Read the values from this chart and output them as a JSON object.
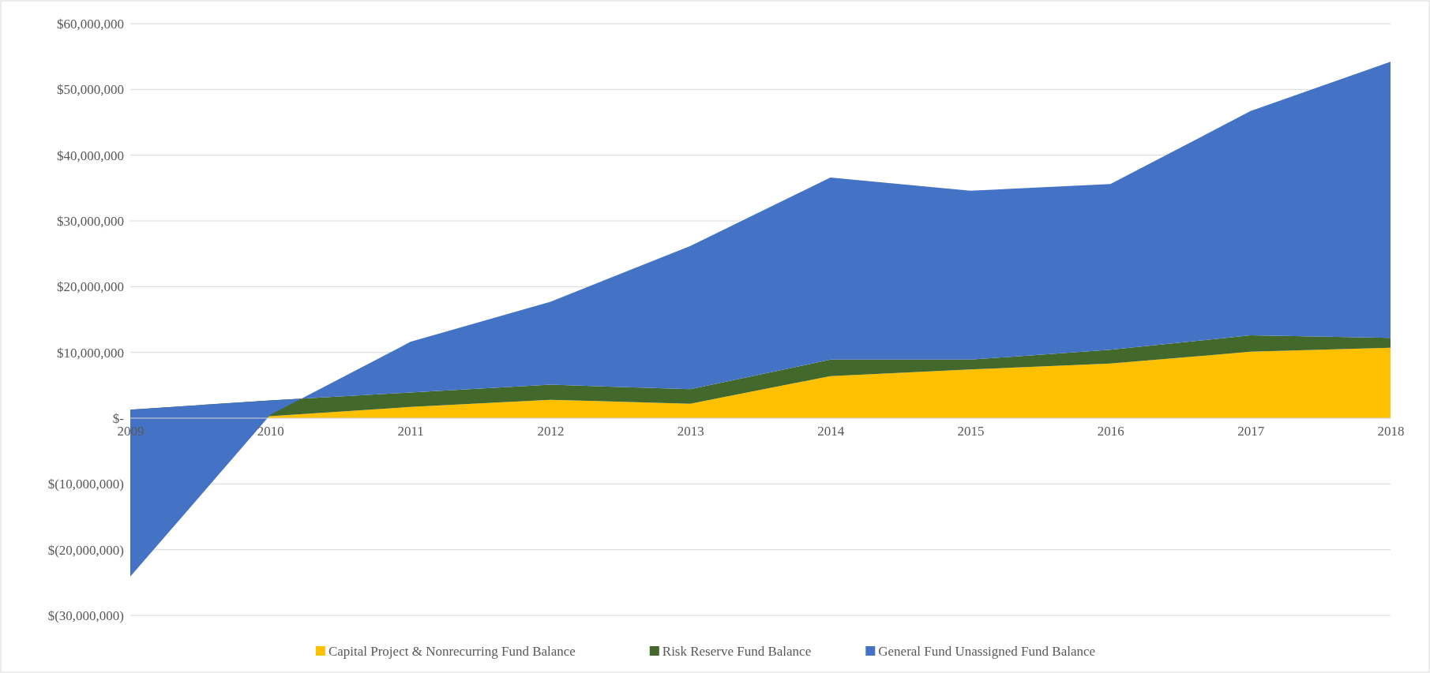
{
  "chart_data": {
    "type": "area",
    "stacked": true,
    "categories": [
      "2009",
      "2010",
      "2011",
      "2012",
      "2013",
      "2014",
      "2015",
      "2016",
      "2017",
      "2018"
    ],
    "series": [
      {
        "name": "Capital Project & Nonrecurring Fund Balance",
        "color": "#ffc000",
        "values": [
          0,
          300000,
          1700000,
          2800000,
          2200000,
          6400000,
          7400000,
          8300000,
          10100000,
          10700000
        ]
      },
      {
        "name": "Risk Reserve Fund Balance",
        "color": "#43682b",
        "values": [
          1300000,
          2400000,
          2200000,
          2300000,
          2200000,
          2500000,
          1500000,
          2100000,
          2500000,
          1500000
        ]
      },
      {
        "name": "General Fund Unassigned Fund Balance",
        "color": "#4472c4",
        "values": [
          -25400000,
          -2200000,
          7700000,
          12600000,
          21800000,
          27700000,
          25700000,
          25200000,
          34100000,
          42000000
        ]
      }
    ],
    "ylim": [
      -30000000,
      60000000
    ],
    "yticks": [
      {
        "value": -30000000,
        "label": "$(30,000,000)"
      },
      {
        "value": -20000000,
        "label": "$(20,000,000)"
      },
      {
        "value": -10000000,
        "label": "$(10,000,000)"
      },
      {
        "value": 0,
        "label": "$-"
      },
      {
        "value": 10000000,
        "label": "$10,000,000"
      },
      {
        "value": 20000000,
        "label": "$20,000,000"
      },
      {
        "value": 30000000,
        "label": "$30,000,000"
      },
      {
        "value": 40000000,
        "label": "$40,000,000"
      },
      {
        "value": 50000000,
        "label": "$50,000,000"
      },
      {
        "value": 60000000,
        "label": "$60,000,000"
      }
    ],
    "grid": "y",
    "legend": "bottom"
  }
}
